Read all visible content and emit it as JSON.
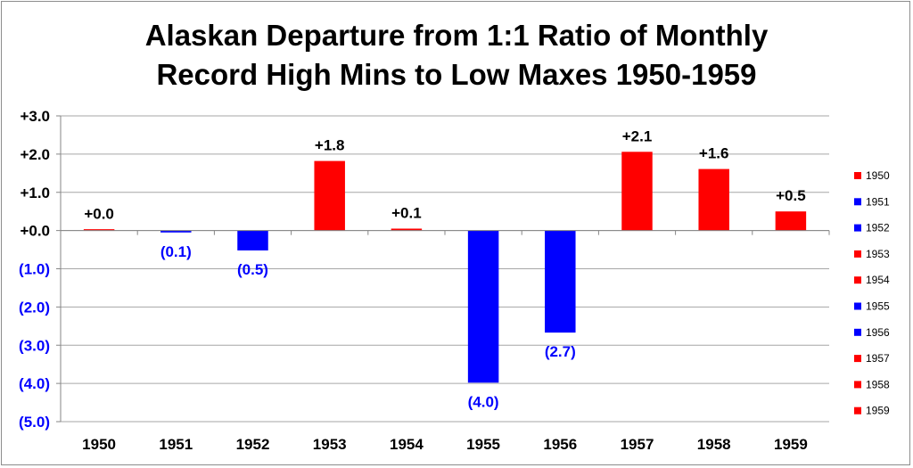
{
  "chart_data": {
    "type": "bar",
    "title": [
      "Alaskan Departure from 1:1 Ratio of Monthly",
      "Record High Mins to Low Maxes 1950-1959"
    ],
    "xlabel": "",
    "ylabel": "",
    "categories": [
      "1950",
      "1951",
      "1952",
      "1953",
      "1954",
      "1955",
      "1956",
      "1957",
      "1958",
      "1959"
    ],
    "values": [
      0.03,
      -0.05,
      -0.52,
      1.82,
      0.05,
      -3.98,
      -2.67,
      2.06,
      1.61,
      0.5
    ],
    "data_labels": [
      "+0.0",
      "(0.1)",
      "(0.5)",
      "+1.8",
      "+0.1",
      "(4.0)",
      "(2.7)",
      "+2.1",
      "+1.6",
      "+0.5"
    ],
    "ylim": [
      -5,
      3
    ],
    "yticks": [
      3,
      2,
      1,
      0,
      -1,
      -2,
      -3,
      -4,
      -5
    ],
    "ytick_labels": [
      "+3.0",
      "+2.0",
      "+1.0",
      "+0.0",
      "(1.0)",
      "(2.0)",
      "(3.0)",
      "(4.0)",
      "(5.0)"
    ],
    "grid": true,
    "legend": {
      "placement": "right",
      "entries": [
        "1950",
        "1951",
        "1952",
        "1953",
        "1954",
        "1955",
        "1956",
        "1957",
        "1958",
        "1959"
      ]
    },
    "colors": {
      "positive": "#ff0000",
      "negative": "#0000ff",
      "positive_label": "#000000",
      "negative_label": "#0000ff",
      "grid": "#a6a6a6"
    }
  }
}
